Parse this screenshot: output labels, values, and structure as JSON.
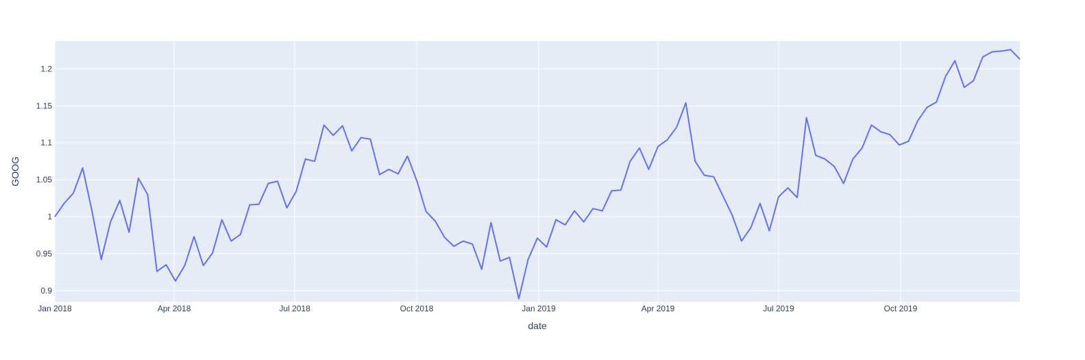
{
  "chart_data": {
    "type": "line",
    "title": "",
    "xlabel": "date",
    "ylabel": "GOOG",
    "grid": true,
    "legend": "none",
    "xlim": [
      "2018-01-01",
      "2019-12-30"
    ],
    "ylim": [
      0.885,
      1.2375
    ],
    "x_ticks": [
      {
        "date": "2018-01-01",
        "label": "Jan 2018"
      },
      {
        "date": "2018-04-01",
        "label": "Apr 2018"
      },
      {
        "date": "2018-07-01",
        "label": "Jul 2018"
      },
      {
        "date": "2018-10-01",
        "label": "Oct 2018"
      },
      {
        "date": "2019-01-01",
        "label": "Jan 2019"
      },
      {
        "date": "2019-04-01",
        "label": "Apr 2019"
      },
      {
        "date": "2019-07-01",
        "label": "Jul 2019"
      },
      {
        "date": "2019-10-01",
        "label": "Oct 2019"
      }
    ],
    "y_ticks": [
      {
        "value": 0.9,
        "label": "0.9"
      },
      {
        "value": 0.95,
        "label": "0.95"
      },
      {
        "value": 1.0,
        "label": "1"
      },
      {
        "value": 1.05,
        "label": "1.05"
      },
      {
        "value": 1.1,
        "label": "1.1"
      },
      {
        "value": 1.15,
        "label": "1.15"
      },
      {
        "value": 1.2,
        "label": "1.2"
      }
    ],
    "colors": {
      "line": "#636efa",
      "plot_bg": "#e5ecf6",
      "grid": "#ffffff",
      "text": "#2a3f5f"
    },
    "series": [
      {
        "x_start": "2018-01-01",
        "x_step_days": 7,
        "values": [
          1.0,
          1.018,
          1.032,
          1.066,
          1.008,
          0.942,
          0.993,
          1.022,
          0.979,
          1.052,
          1.03,
          0.926,
          0.935,
          0.913,
          0.934,
          0.973,
          0.934,
          0.951,
          0.996,
          0.967,
          0.976,
          1.016,
          1.017,
          1.045,
          1.048,
          1.012,
          1.034,
          1.078,
          1.075,
          1.124,
          1.11,
          1.123,
          1.089,
          1.107,
          1.105,
          1.057,
          1.064,
          1.058,
          1.082,
          1.049,
          1.007,
          0.994,
          0.972,
          0.96,
          0.967,
          0.963,
          0.929,
          0.992,
          0.94,
          0.945,
          0.889,
          0.942,
          0.971,
          0.959,
          0.996,
          0.989,
          1.008,
          0.993,
          1.011,
          1.008,
          1.035,
          1.036,
          1.075,
          1.093,
          1.064,
          1.095,
          1.104,
          1.121,
          1.154,
          1.075,
          1.056,
          1.054,
          1.028,
          1.002,
          0.967,
          0.985,
          1.018,
          0.981,
          1.027,
          1.039,
          1.026,
          1.134,
          1.083,
          1.078,
          1.068,
          1.045,
          1.078,
          1.093,
          1.124,
          1.115,
          1.111,
          1.097,
          1.102,
          1.13,
          1.148,
          1.155,
          1.19,
          1.211,
          1.175,
          1.184,
          1.216,
          1.223,
          1.224,
          1.226,
          1.213
        ]
      }
    ]
  }
}
